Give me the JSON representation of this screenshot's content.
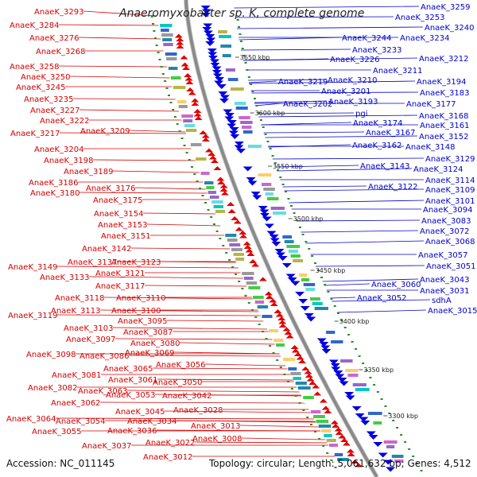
{
  "title": "Anaeromyxobacter sp. K, complete genome",
  "footer": {
    "accession": "Accession: NC_011145",
    "summary": "Topology: circular; Length: 5,061,632 bp; Genes: 4,512"
  },
  "colors": {
    "left_labels": "#d40000",
    "right_labels": "#0000cc",
    "backbone": "#8a8a8a",
    "forward_genes": "#e00000",
    "reverse_genes": "#0000e0",
    "tick_dots": "#2a8a2a"
  },
  "scale_ticks": [
    "3650 kbp",
    "3600 kbp",
    "3550 kbp",
    "3500 kbp",
    "3450 kbp",
    "3400 kbp",
    "3350 kbp",
    "3300 kbp"
  ],
  "left_labels": [
    "AnaeK_3293",
    "AnaeK_3284",
    "AnaeK_3276",
    "AnaeK_3268",
    "AnaeK_3258",
    "AnaeK_3250",
    "AnaeK_3245",
    "AnaeK_3235",
    "AnaeK_3227",
    "AnaeK_3222",
    "AnaeK_3217",
    "AnaeK_3209",
    "AnaeK_3204",
    "AnaeK_3198",
    "AnaeK_3189",
    "AnaeK_3186",
    "AnaeK_3180",
    "AnaeK_3176",
    "AnaeK_3175",
    "AnaeK_3154",
    "AnaeK_3153",
    "AnaeK_3151",
    "AnaeK_3142",
    "AnaeK_3149",
    "AnaeK_3137",
    "AnaeK_3123",
    "AnaeK_3133",
    "AnaeK_3121",
    "AnaeK_3117",
    "AnaeK_3118",
    "AnaeK_3110",
    "AnaeK_3119",
    "AnaeK_3113",
    "AnaeK_3100",
    "AnaeK_3095",
    "AnaeK_3103",
    "AnaeK_3087",
    "AnaeK_3097",
    "AnaeK_3080",
    "AnaeK_3098",
    "AnaeK_3086",
    "AnaeK_3069",
    "AnaeK_3081",
    "AnaeK_3065",
    "AnaeK_3056",
    "AnaeK_3082",
    "AnaeK_3061",
    "AnaeK_3063",
    "AnaeK_3050",
    "AnaeK_3062",
    "AnaeK_3053",
    "AnaeK_3042",
    "AnaeK_3064",
    "AnaeK_3045",
    "AnaeK_3028",
    "AnaeK_3054",
    "AnaeK_3034",
    "AnaeK_3055",
    "AnaeK_3036",
    "AnaeK_3013",
    "AnaeK_3037",
    "AnaeK_3022",
    "AnaeK_3008",
    "AnaeK_3012"
  ],
  "right_labels": [
    "AnaeK_3259",
    "AnaeK_3253",
    "AnaeK_3240",
    "AnaeK_3244",
    "AnaeK_3234",
    "AnaeK_3233",
    "AnaeK_3226",
    "AnaeK_3212",
    "AnaeK_3211",
    "AnaeK_3210",
    "AnaeK_3219",
    "AnaeK_3194",
    "AnaeK_3201",
    "AnaeK_3183",
    "AnaeK_3193",
    "AnaeK_3202",
    "AnaeK_3177",
    "pgi",
    "AnaeK_3168",
    "AnaeK_3174",
    "AnaeK_3161",
    "AnaeK_3167",
    "AnaeK_3152",
    "AnaeK_3162",
    "AnaeK_3148",
    "AnaeK_3129",
    "AnaeK_3143",
    "AnaeK_3124",
    "AnaeK_3114",
    "AnaeK_3122",
    "AnaeK_3109",
    "AnaeK_3101",
    "AnaeK_3094",
    "AnaeK_3083",
    "AnaeK_3072",
    "AnaeK_3068",
    "AnaeK_3057",
    "AnaeK_3051",
    "AnaeK_3060",
    "AnaeK_3043",
    "AnaeK_3031",
    "AnaeK_3052",
    "sdhA",
    "AnaeK_3015"
  ]
}
